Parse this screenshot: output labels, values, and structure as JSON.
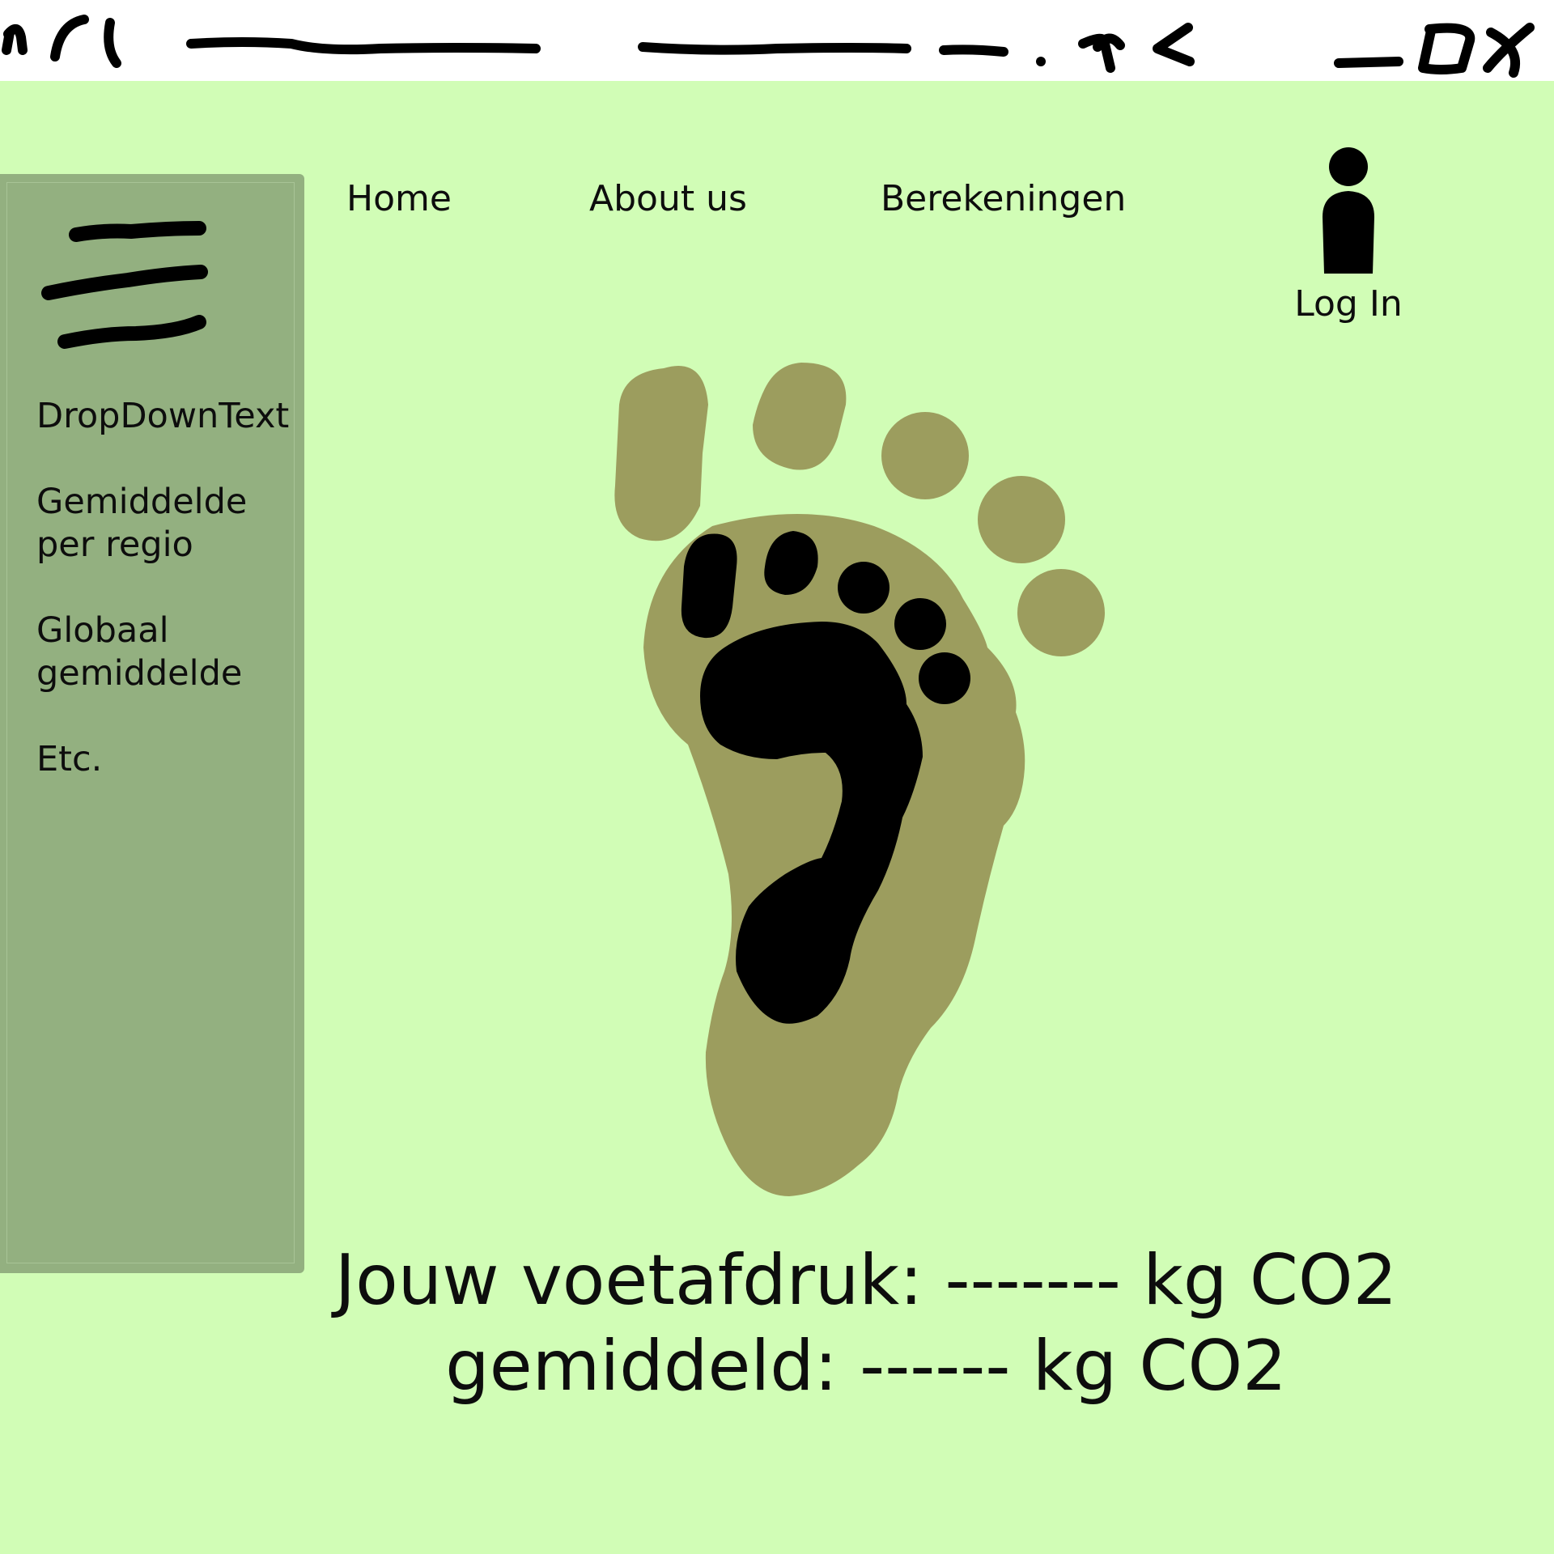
{
  "titlebar": {
    "scribble": "url ------------- ------------ -- . nl",
    "minimize_icon": "minimize-icon",
    "maximize_icon": "maximize-icon",
    "close_icon": "close-icon"
  },
  "nav": {
    "home": "Home",
    "about": "About us",
    "calculations": "Berekeningen",
    "login": "Log In",
    "login_icon": "user-icon"
  },
  "sidebar": {
    "menu_icon": "hamburger-menu-icon",
    "items": [
      {
        "label": "DropDownText"
      },
      {
        "label_line1": "Gemiddelde",
        "label_line2": "per regio"
      },
      {
        "label_line1": "Globaal",
        "label_line2": "gemiddelde"
      },
      {
        "label": "Etc."
      }
    ]
  },
  "main": {
    "illustration": "footprint-icon",
    "footprint_line": "Jouw voetafdruk: ------- kg CO2",
    "average_line": "gemiddeld: ------ kg CO2"
  },
  "colors": {
    "background": "#d1fdb6",
    "sidebar": "#93b080",
    "foot_outer": "#9c9d5e",
    "foot_inner": "#000000"
  }
}
